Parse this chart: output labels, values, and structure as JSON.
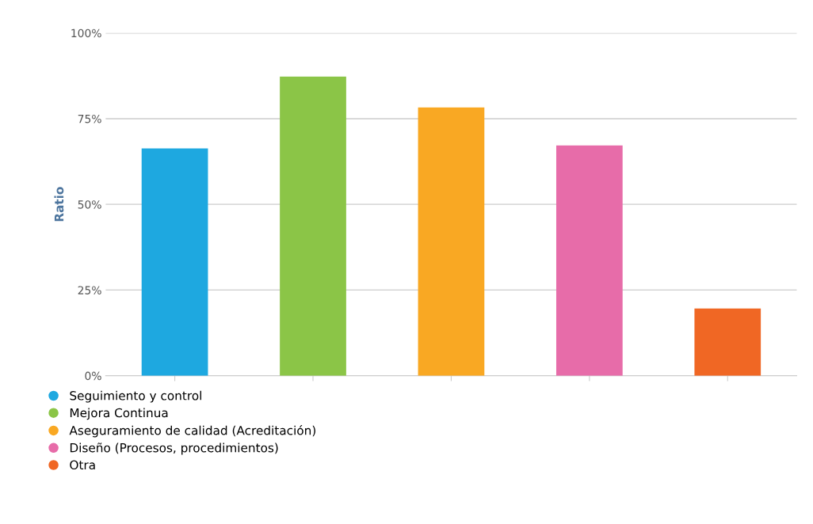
{
  "chart_data": {
    "type": "bar",
    "ylabel": "Ratio",
    "categories": [
      null,
      null,
      null,
      null,
      null
    ],
    "series": [
      {
        "name": "Seguimiento y control",
        "color": "#1ea8e0",
        "values": [
          66.3,
          null,
          null,
          null,
          null
        ]
      },
      {
        "name": "Mejora Continua",
        "color": "#8bc547",
        "values": [
          null,
          87.3,
          null,
          null,
          null
        ]
      },
      {
        "name": "Aseguramiento de calidad (Acreditación)",
        "color": "#f9a823",
        "values": [
          null,
          null,
          78.3,
          null,
          null
        ]
      },
      {
        "name": "Diseño (Procesos, procedimientos)",
        "color": "#e76ca9",
        "values": [
          null,
          null,
          null,
          67.2,
          null
        ]
      },
      {
        "name": "Otra",
        "color": "#f06724",
        "values": [
          null,
          null,
          null,
          null,
          19.6
        ]
      }
    ],
    "ylim": [
      0,
      100
    ],
    "yticks": [
      {
        "value": 0,
        "label": "0%"
      },
      {
        "value": 25,
        "label": "25%"
      },
      {
        "value": 50,
        "label": "50%"
      },
      {
        "value": 75,
        "label": "75%"
      },
      {
        "value": 100,
        "label": "100%"
      }
    ],
    "grid": "y",
    "legend": "bottom left"
  }
}
